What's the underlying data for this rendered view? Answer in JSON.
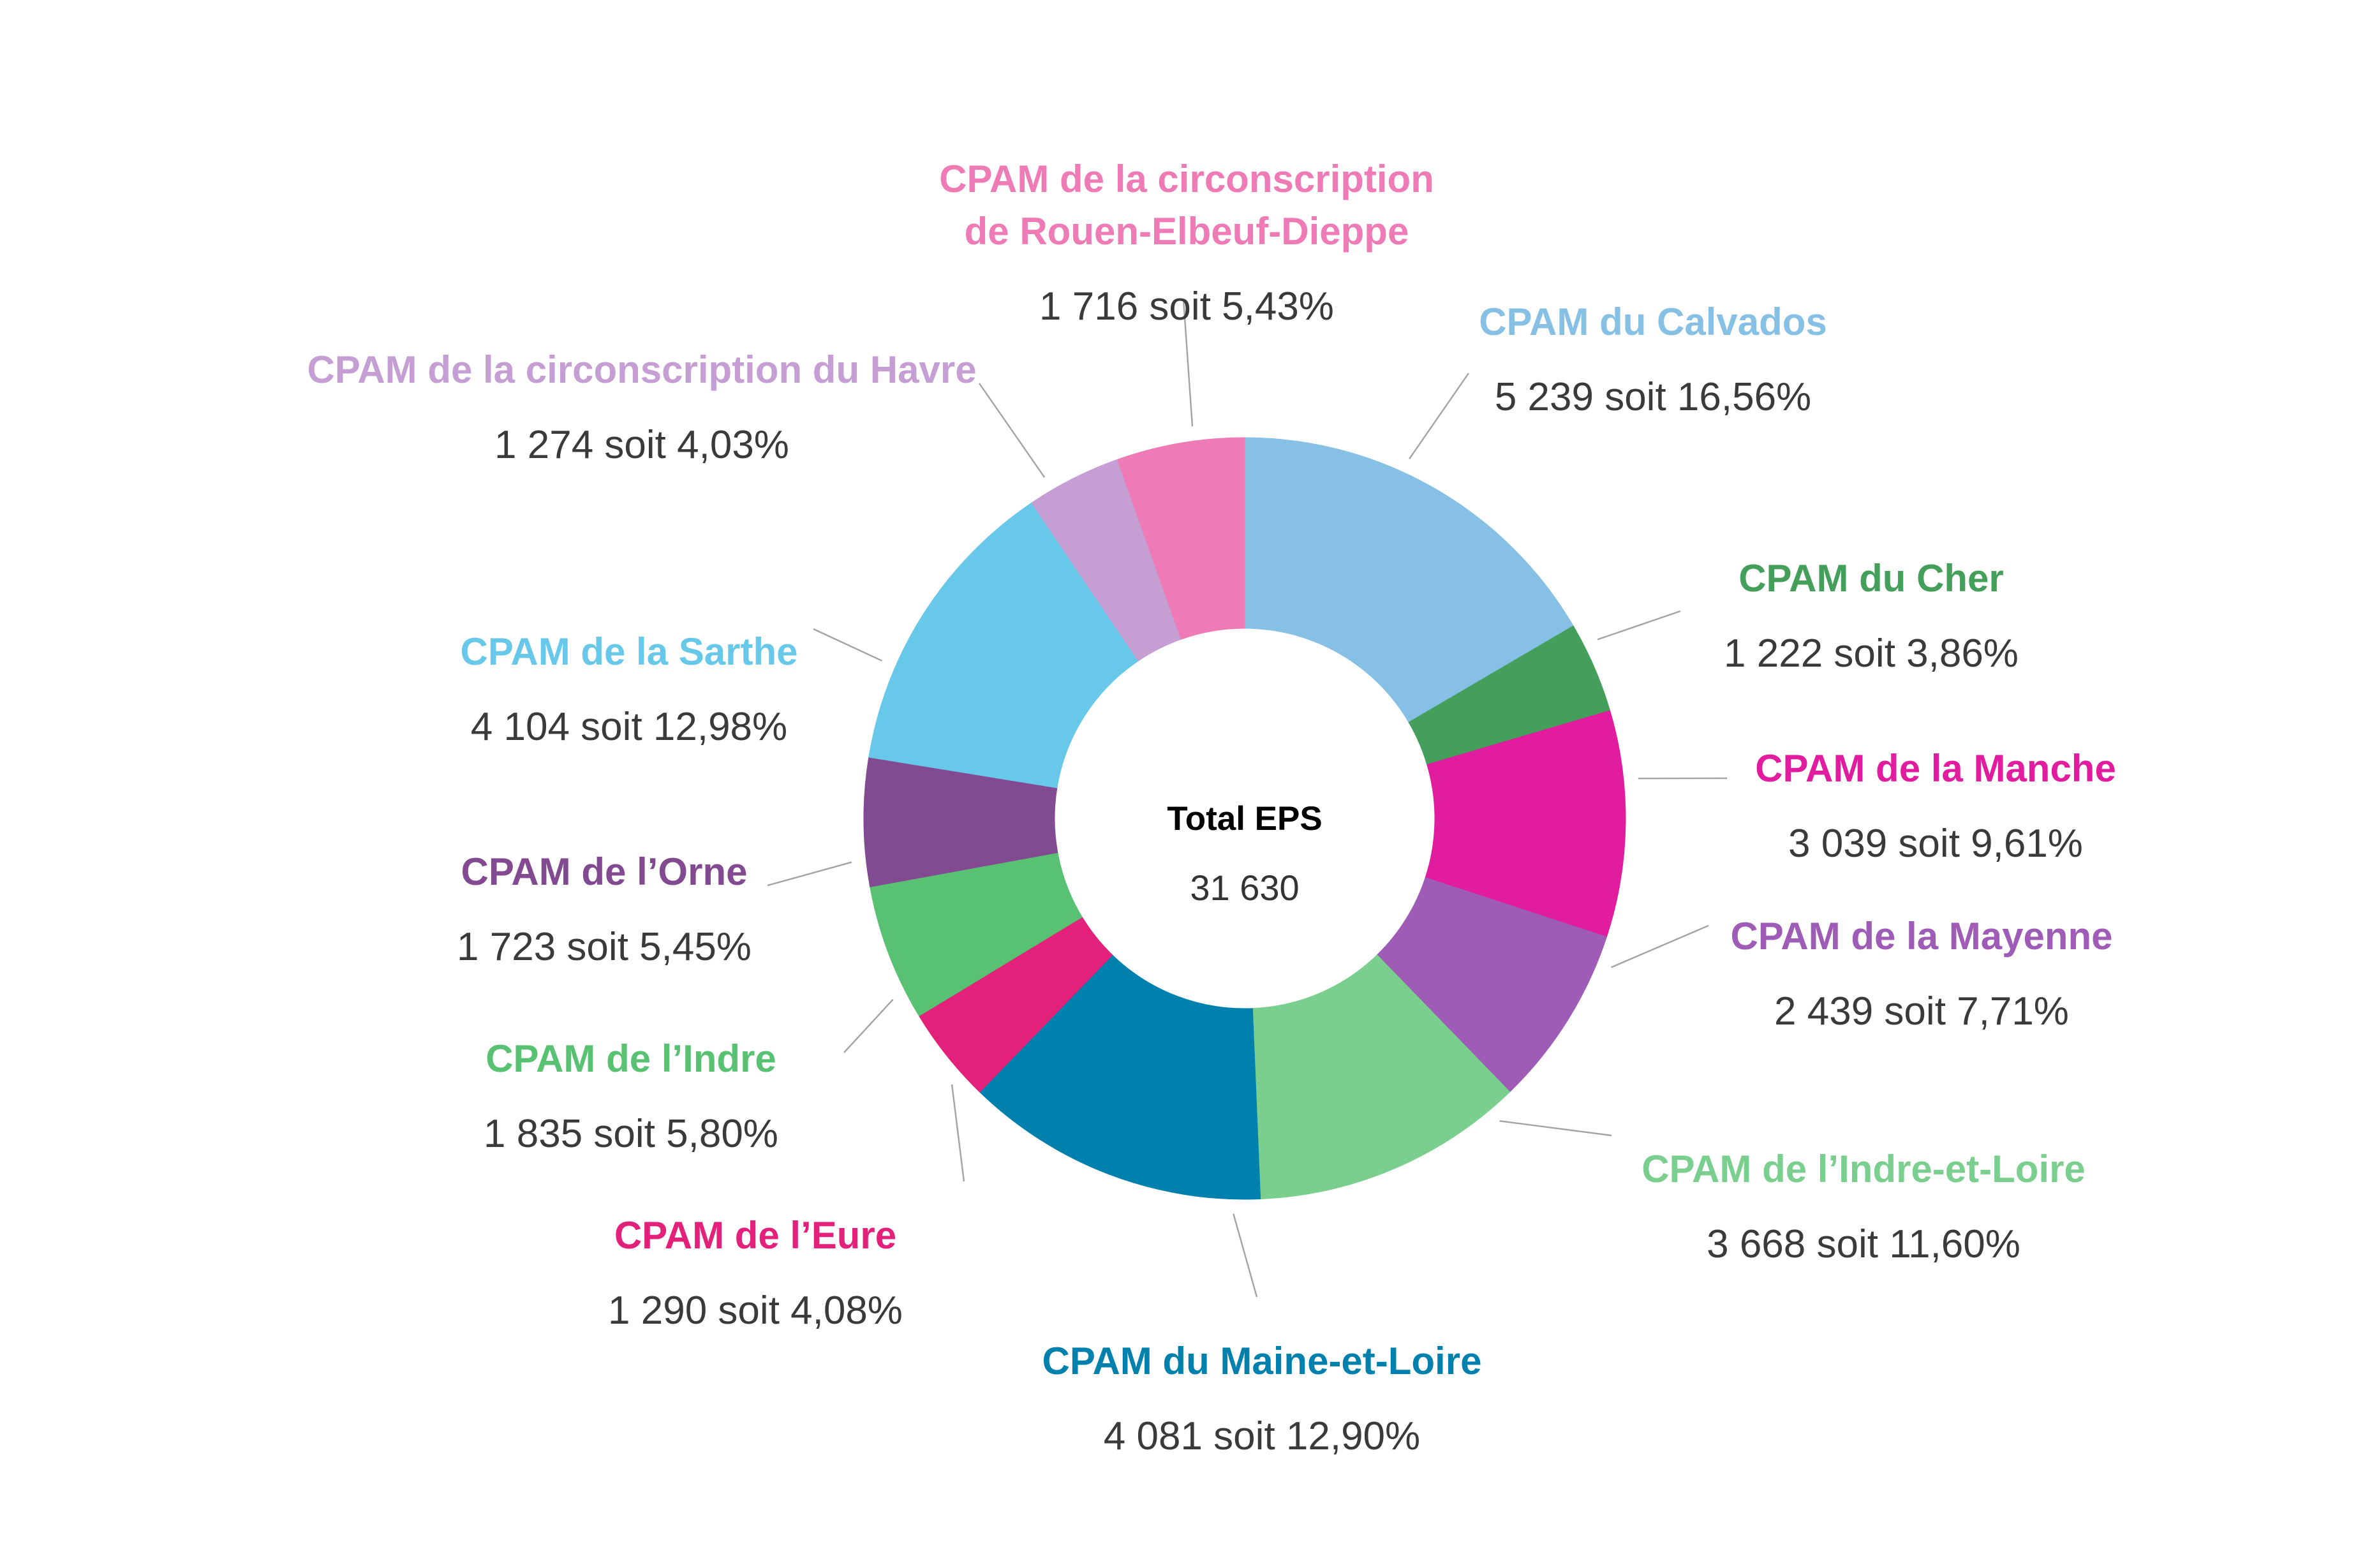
{
  "chart_data": {
    "type": "pie",
    "donut": true,
    "center_label": {
      "title": "Total EPS",
      "value": "31 630"
    },
    "slices": [
      {
        "label": "CPAM du Calvados",
        "value": 5239,
        "value_text": "5 239 soit 16,56%",
        "color": "#86C0E4"
      },
      {
        "label": "CPAM du Cher",
        "value": 1222,
        "value_text": "1 222 soit 3,86%",
        "color": "#449F5A"
      },
      {
        "label": "CPAM de la Manche",
        "value": 3039,
        "value_text": "3 039 soit 9,61%",
        "color": "#E21C9F"
      },
      {
        "label": "CPAM de la Mayenne",
        "value": 2439,
        "value_text": "2 439 soit 7,71%",
        "color": "#9E5CB7"
      },
      {
        "label": "CPAM de l’Indre-et-Loire",
        "value": 3668,
        "value_text": "3 668 soit 11,60%",
        "color": "#7ACF8E"
      },
      {
        "label": "CPAM du Maine-et-Loire",
        "value": 4081,
        "value_text": "4 081 soit 12,90%",
        "color": "#0081AD"
      },
      {
        "label": "CPAM de l’Eure",
        "value": 1290,
        "value_text": "1 290 soit 4,08%",
        "color": "#E3207A"
      },
      {
        "label": "CPAM de l’Indre",
        "value": 1835,
        "value_text": "1 835 soit 5,80%",
        "color": "#58C272"
      },
      {
        "label": "CPAM de l’Orne",
        "value": 1723,
        "value_text": "1 723 soit 5,45%",
        "color": "#824A91"
      },
      {
        "label": "CPAM de la Sarthe",
        "value": 4104,
        "value_text": "4 104 soit 12,98%",
        "color": "#68C8EA"
      },
      {
        "label": "CPAM de la circonscription du Havre",
        "value": 1274,
        "value_text": "1 274 soit 4,03%",
        "color": "#C59ED3"
      },
      {
        "label": "CPAM de la circonscription\nde Rouen-Elbeuf-Dieppe",
        "value": 1716,
        "value_text": "1 716 soit 5,43%",
        "color": "#EE7BB5"
      }
    ]
  }
}
